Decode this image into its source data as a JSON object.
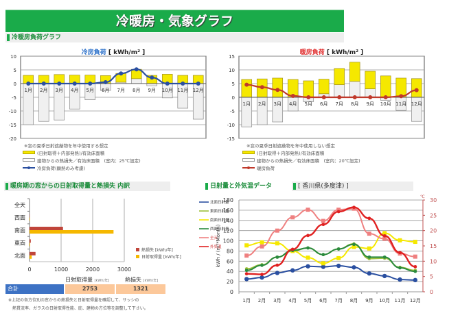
{
  "header": {
    "title": "冷暖房・気象グラフ"
  },
  "sections": {
    "load": "冷暖房負荷グラフ",
    "window": "暖房期の窓からの日射取得量と熱損失 内訳",
    "weather": "日射量と外気温データ",
    "location": "[ 香川県(多度津) ]"
  },
  "cooling_legend": {
    "note": "※窓の夏季日射遮蔽物を年中使用する想定",
    "gain": "(日射取得＋内部発熱)/有効床面積",
    "loss": "建物からの熱損失／有効床面積　(室内：25℃設定)",
    "load": "冷房負荷(顕熱のみ考慮)"
  },
  "heating_legend": {
    "note": "※窓の夏季日射遮蔽物を年中使用しない想定",
    "gain": "(日射取得＋内部発熱)/有効床面積",
    "loss": "建物からの熱損失／有効床面積　(室内：20℃設定)",
    "load": "暖房負荷"
  },
  "summary": {
    "label": "合計",
    "gain_header": "日射取得量",
    "loss_header": "熱損失",
    "unit": "[kWh/年]",
    "gain_value": "2753",
    "loss_value": "1321",
    "note1": "※上記の各方位別の窓からの熱損失と日射取得量を確認して、サッシの",
    "note2": "熱貫流率、ガラスの日射取得性能、庇、建物の方位等を調整して下さい。"
  },
  "colors": {
    "green": "#1aab4a",
    "yellow": "#f5e800",
    "loss_gray": "#f0f0f0",
    "blue": "#2a4fa0",
    "red": "#c0392b"
  },
  "chart_data": [
    {
      "id": "cooling",
      "type": "bar",
      "title": "冷房負荷",
      "unit": "[ kWh/m² ]",
      "categories": [
        "1月",
        "2月",
        "3月",
        "4月",
        "5月",
        "6月",
        "7月",
        "8月",
        "9月",
        "10月",
        "11月",
        "12月"
      ],
      "ylim": [
        -20,
        10
      ],
      "yticks": [
        10,
        5,
        0,
        -5,
        -10,
        -15,
        -20
      ],
      "series": [
        {
          "name": "(日射取得＋内部発熱)/有効床面積",
          "kind": "bar",
          "values": [
            3.0,
            3.0,
            3.3,
            3.1,
            3.1,
            2.9,
            3.7,
            5.2,
            3.0,
            3.4,
            3.0,
            3.0
          ]
        },
        {
          "name": "建物からの熱損失／有効床面積",
          "kind": "bar",
          "values": [
            -15.0,
            -13.8,
            -13.3,
            -9.3,
            -5.9,
            -2.5,
            0.5,
            1.8,
            -0.8,
            -5.2,
            -9.0,
            -13.0
          ]
        },
        {
          "name": "冷房負荷(顕熱のみ考慮)",
          "kind": "line",
          "values": [
            0,
            0,
            0,
            0,
            0,
            0.5,
            3.7,
            5.2,
            2.2,
            0,
            0,
            0
          ]
        }
      ]
    },
    {
      "id": "heating",
      "type": "bar",
      "title": "暖房負荷",
      "unit": "[ kWh/m² ]",
      "categories": [
        "1月",
        "2月",
        "3月",
        "4月",
        "5月",
        "6月",
        "7月",
        "8月",
        "9月",
        "10月",
        "11月",
        "12月"
      ],
      "ylim": [
        -15,
        15
      ],
      "yticks": [
        15,
        10,
        5,
        0,
        -5,
        -10,
        -15
      ],
      "series": [
        {
          "name": "(日射取得＋内部発熱)/有効床面積",
          "kind": "bar",
          "values": [
            6.5,
            6.7,
            7.0,
            6.5,
            6.0,
            6.6,
            10.5,
            12.8,
            9.5,
            7.8,
            7.0,
            6.8
          ]
        },
        {
          "name": "建物からの熱損失／有効床面積",
          "kind": "bar",
          "values": [
            -10.8,
            -10.0,
            -9.0,
            -5.0,
            -1.6,
            1.3,
            4.6,
            5.8,
            3.1,
            -1.1,
            -4.8,
            -8.8
          ]
        },
        {
          "name": "暖房負荷",
          "kind": "line",
          "values": [
            4.6,
            3.7,
            2.7,
            0.5,
            0,
            0,
            0,
            0,
            0,
            0,
            0.4,
            2.6
          ]
        }
      ]
    },
    {
      "id": "window",
      "type": "bar",
      "orientation": "horizontal",
      "categories": [
        "全天",
        "西面",
        "南面",
        "東面",
        "北面"
      ],
      "xlim": [
        0,
        3000
      ],
      "xticks": [
        0,
        1000,
        2000,
        3000
      ],
      "series": [
        {
          "name": "熱損失 [kWh/年]",
          "values": [
            0,
            10,
            1060,
            40,
            190
          ]
        },
        {
          "name": "日射取得量 [kWh/年]",
          "values": [
            0,
            15,
            2660,
            20,
            70
          ]
        }
      ],
      "legend": "right"
    },
    {
      "id": "weather",
      "type": "line",
      "categories": [
        "1月",
        "2月",
        "3月",
        "4月",
        "5月",
        "6月",
        "7月",
        "8月",
        "9月",
        "10月",
        "11月",
        "12月"
      ],
      "ylabel": "kWh / (m²*Month)",
      "ylim": [
        0,
        180
      ],
      "yticks": [
        0,
        20,
        40,
        60,
        80,
        100,
        120,
        140,
        160,
        180
      ],
      "y2label": "℃",
      "y2lim": [
        0,
        30
      ],
      "y2ticks": [
        0,
        5,
        10,
        15,
        20,
        25,
        30
      ],
      "series": [
        {
          "name": "北面日射量",
          "axis": "left",
          "color": "#2a4fa0",
          "values": [
            25,
            28,
            37,
            42,
            50,
            49,
            51,
            48,
            36,
            31,
            24,
            23
          ]
        },
        {
          "name": "東面日射量",
          "axis": "left",
          "color": "#9dbf3a",
          "values": [
            45,
            53,
            68,
            80,
            86,
            73,
            84,
            94,
            65,
            66,
            48,
            42
          ]
        },
        {
          "name": "南面日射量",
          "axis": "left",
          "color": "#f5e800",
          "values": [
            91,
            97,
            95,
            80,
            67,
            56,
            66,
            88,
            85,
            115,
            101,
            98
          ]
        },
        {
          "name": "西面日射量",
          "axis": "left",
          "color": "#2a8a3e",
          "values": [
            42,
            52,
            68,
            81,
            86,
            73,
            84,
            93,
            68,
            68,
            47,
            40
          ]
        },
        {
          "name": "全天",
          "axis": "left",
          "color": "#ef8080",
          "values": [
            71,
            89,
            120,
            146,
            161,
            139,
            161,
            163,
            114,
            104,
            75,
            69
          ]
        },
        {
          "name": "外気温",
          "axis": "right",
          "color": "#e02020",
          "values": [
            5.9,
            5.7,
            8.7,
            13.9,
            18.4,
            22.0,
            26.2,
            27.6,
            24.0,
            18.3,
            12.8,
            8.2
          ]
        }
      ],
      "legend": "left"
    }
  ]
}
